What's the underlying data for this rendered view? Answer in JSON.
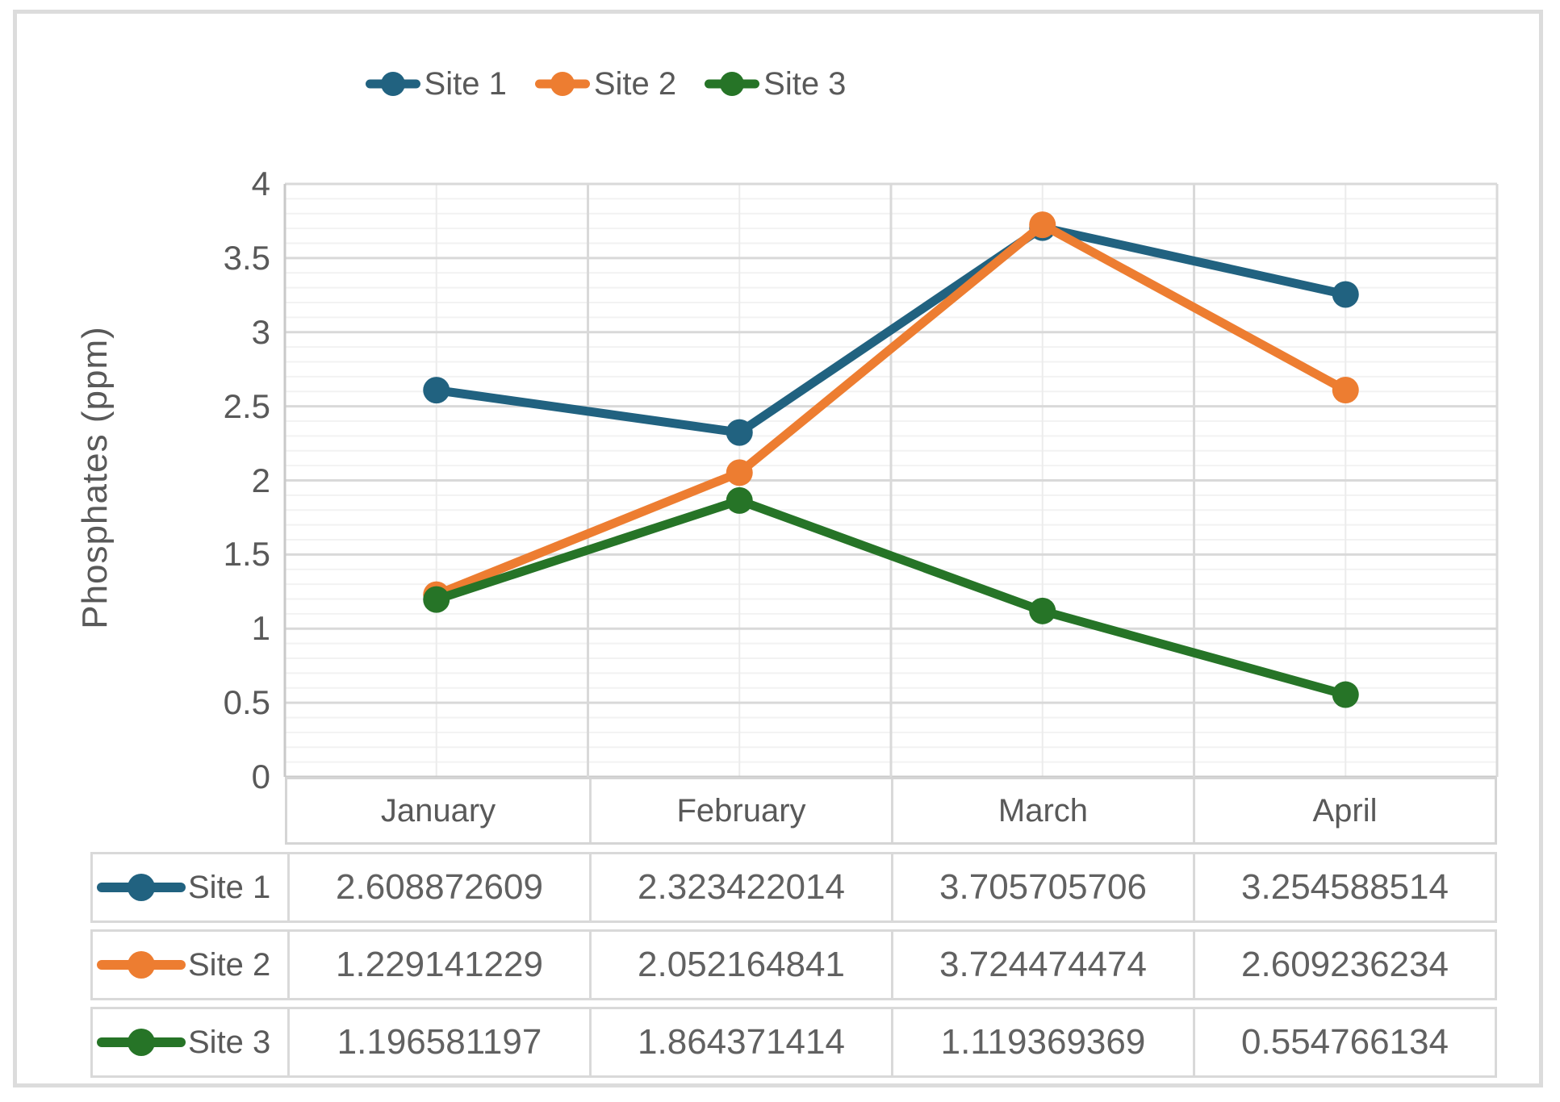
{
  "chart_data": {
    "type": "line",
    "title": "",
    "xlabel": "",
    "ylabel": "Phosphates (ppm)",
    "ylim": [
      0,
      4
    ],
    "y_major_step": 0.5,
    "y_minor_step": 0.1,
    "y_tick_labels": [
      "0",
      "0.5",
      "1",
      "1.5",
      "2",
      "2.5",
      "3",
      "3.5",
      "4"
    ],
    "grid": "major+minor horizontal and vertical",
    "legend_position": "top",
    "data_table_shown": true,
    "categories": [
      "January",
      "February",
      "March",
      "April"
    ],
    "series": [
      {
        "name": "Site 1",
        "color": "#216280",
        "values": [
          2.608872609,
          2.323422014,
          3.705705706,
          3.254588514
        ]
      },
      {
        "name": "Site 2",
        "color": "#ED7D31",
        "values": [
          1.229141229,
          2.052164841,
          3.724474474,
          2.609236234
        ]
      },
      {
        "name": "Site 3",
        "color": "#267427",
        "values": [
          1.196581197,
          1.864371414,
          1.119369369,
          0.554766134
        ]
      }
    ],
    "colors": {
      "text": "#595959",
      "gridline_major": "#d9d9d9",
      "gridline_minor": "#f2f2f2",
      "axis_line": "#c9c9c9",
      "table_border": "#d9d9d9",
      "frame_border": "#dcdcdc"
    }
  }
}
